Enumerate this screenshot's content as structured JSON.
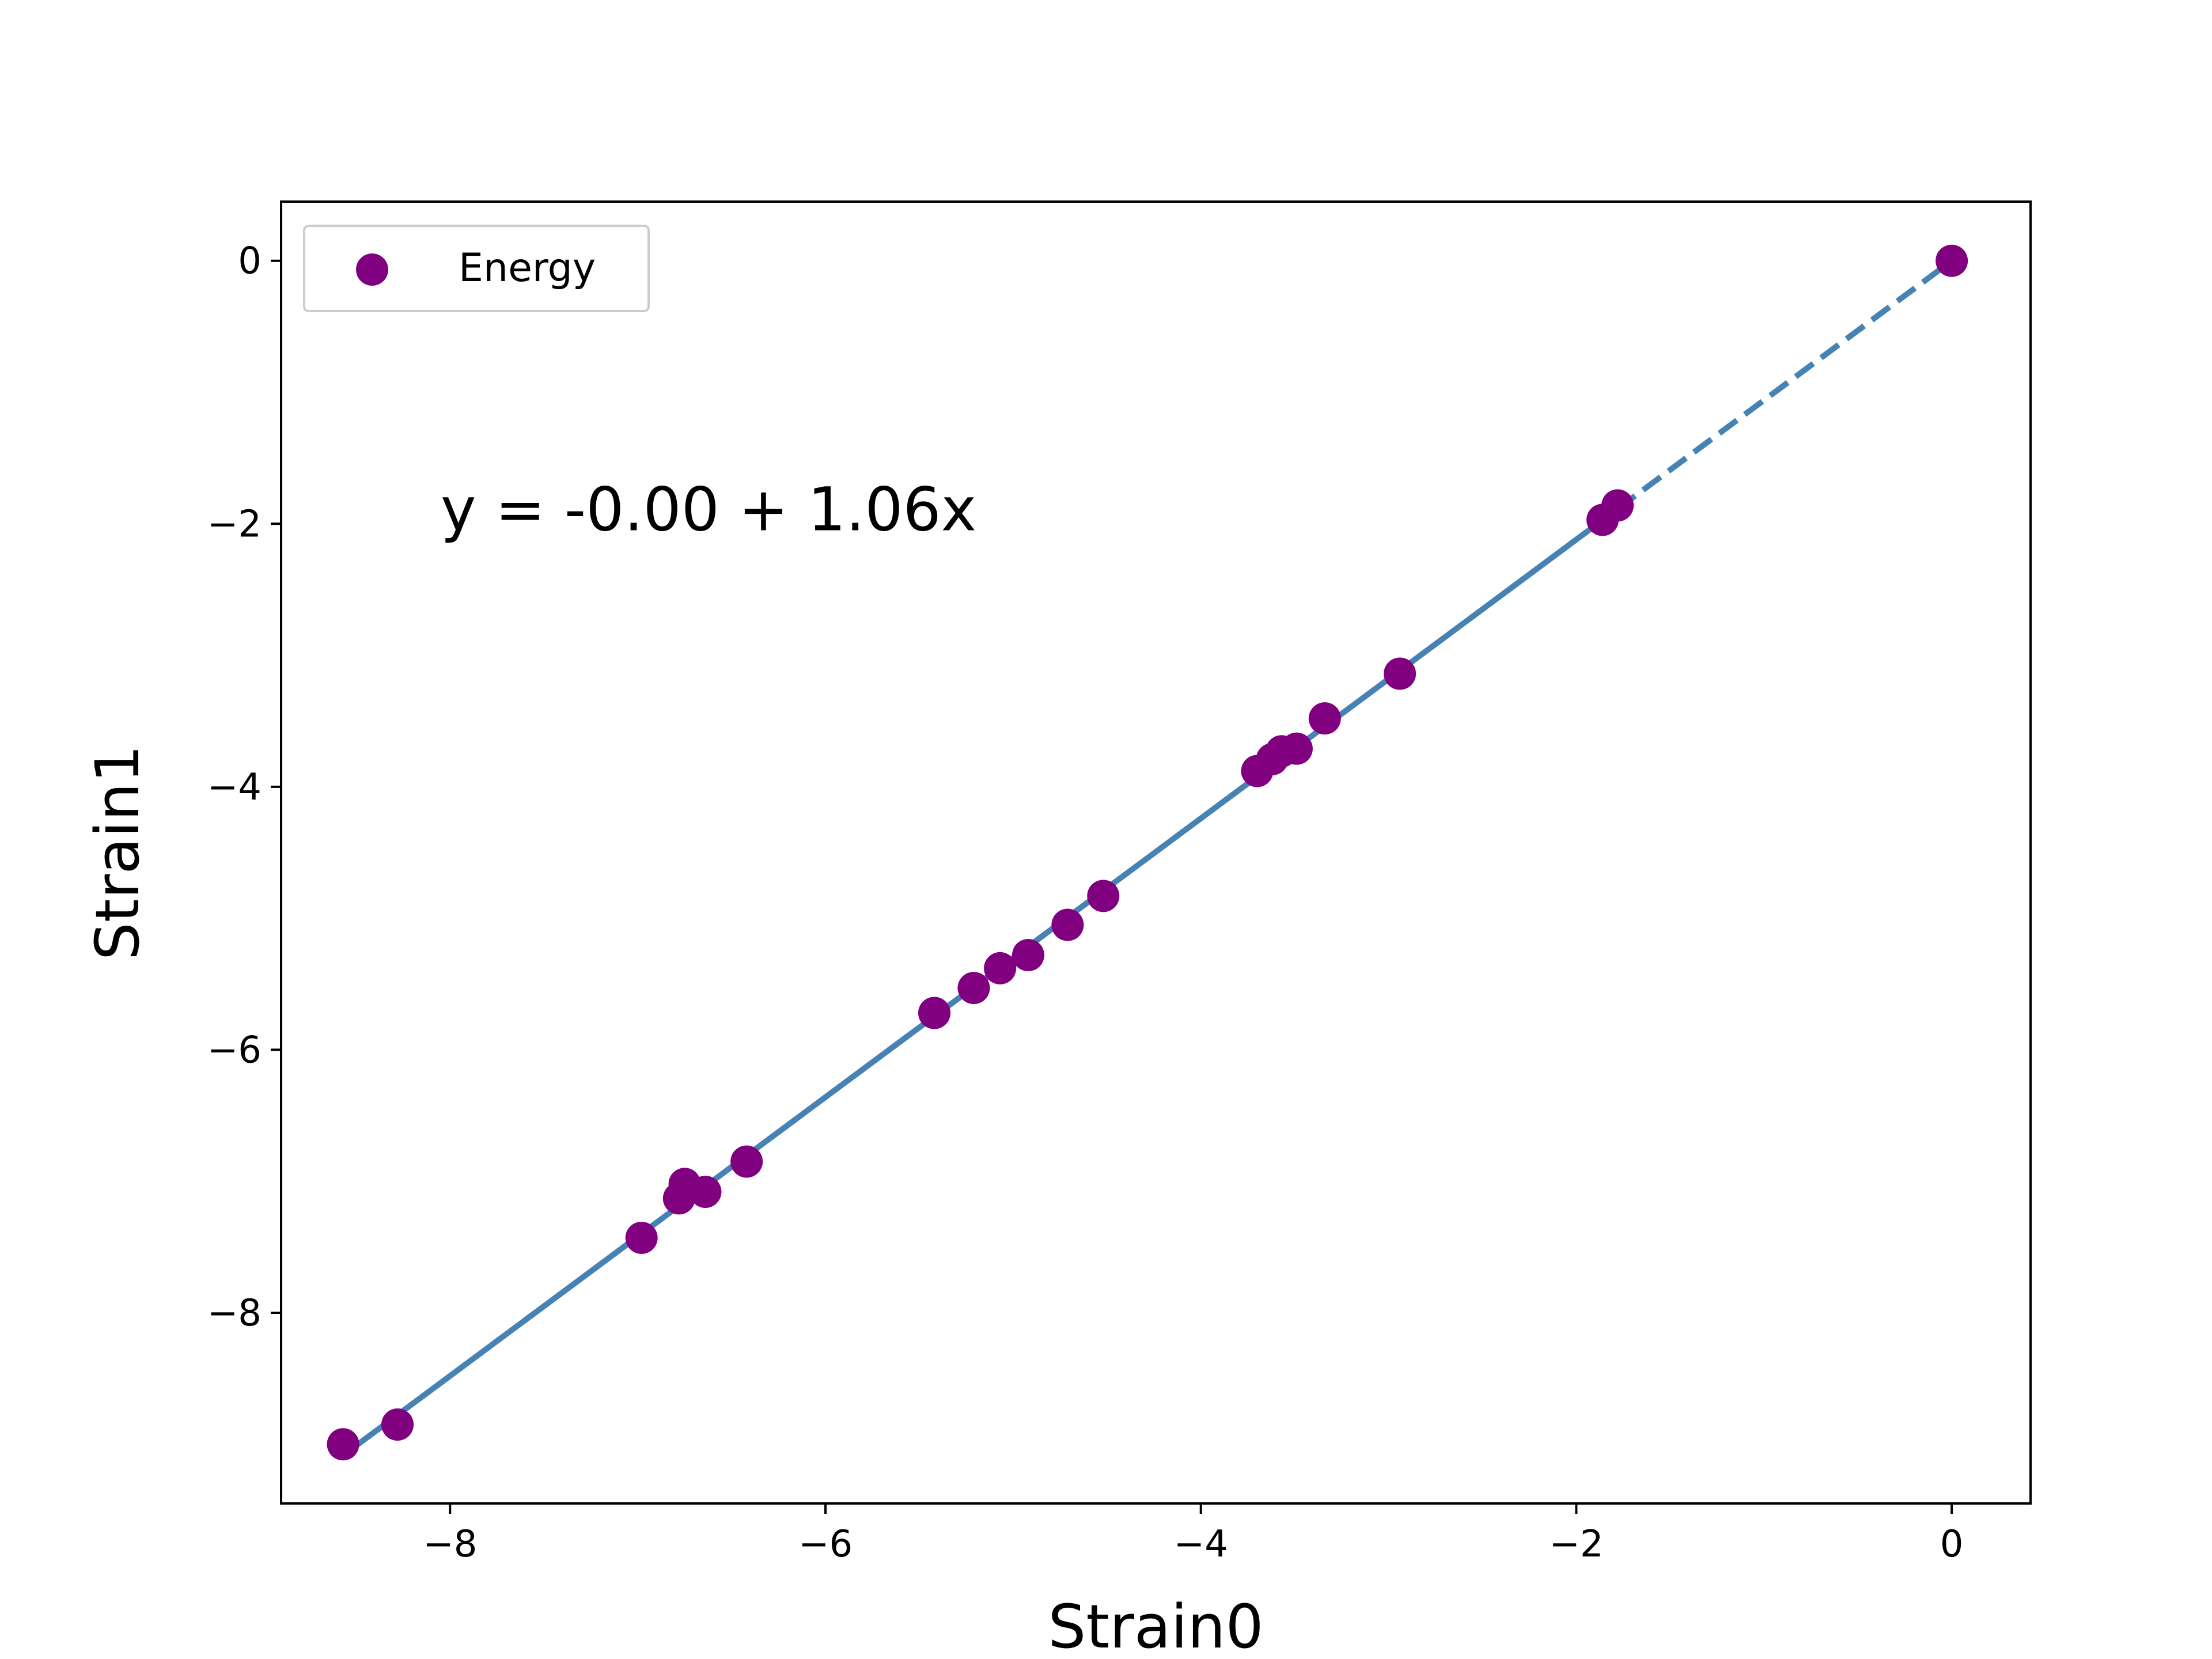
{
  "chart_data": {
    "type": "scatter",
    "xlabel": "Strain0",
    "ylabel": "Strain1",
    "xlim": [
      -8.9,
      0.42
    ],
    "ylim": [
      -9.45,
      0.45
    ],
    "xticks": [
      -8,
      -6,
      -4,
      -2,
      0
    ],
    "yticks": [
      0,
      -2,
      -4,
      -6,
      -8
    ],
    "xtick_labels": [
      "−8",
      "−6",
      "−4",
      "−2",
      "0"
    ],
    "ytick_labels": [
      "0",
      "−2",
      "−4",
      "−6",
      "−8"
    ],
    "annotation": "y = -0.00 + 1.06x",
    "legend": {
      "label": "Energy",
      "location": "top-left"
    },
    "grid": false,
    "series": [
      {
        "name": "Energy",
        "type": "scatter",
        "color": "#800080",
        "x": [
          -8.57,
          -8.28,
          -6.98,
          -6.78,
          -6.75,
          -6.64,
          -6.42,
          -5.42,
          -5.21,
          -5.07,
          -4.92,
          -4.71,
          -4.52,
          -3.7,
          -3.62,
          -3.57,
          -3.49,
          -3.34,
          -2.94,
          -1.86,
          -1.78,
          0.0
        ],
        "y": [
          -9.0,
          -8.85,
          -7.43,
          -7.13,
          -7.02,
          -7.08,
          -6.85,
          -5.72,
          -5.53,
          -5.38,
          -5.28,
          -5.05,
          -4.83,
          -3.88,
          -3.79,
          -3.73,
          -3.71,
          -3.48,
          -3.14,
          -1.97,
          -1.86,
          0.0
        ]
      }
    ],
    "fit_line": {
      "intercept": -0.0,
      "slope": 1.06,
      "color": "#4682b4",
      "solid_range": [
        -8.57,
        -1.78
      ],
      "dashed_range": [
        -1.78,
        0.0
      ]
    }
  }
}
